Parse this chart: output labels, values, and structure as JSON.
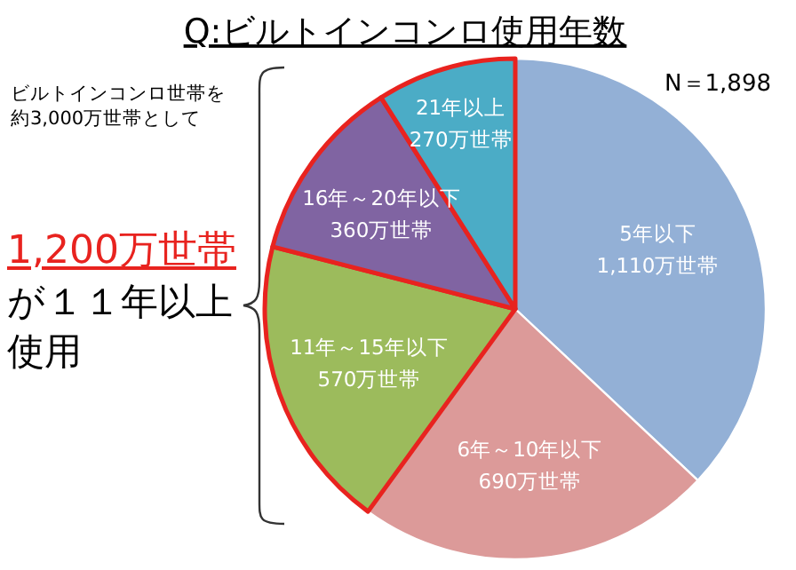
{
  "chart_data": {
    "type": "pie",
    "title": "Q:ビルトインコンロ使用年数",
    "categories": [
      "5年以下",
      "6年～10年以下",
      "11年～15年以下",
      "16年～20年以下",
      "21年以上"
    ],
    "values": [
      1110,
      690,
      570,
      360,
      270
    ],
    "value_labels": [
      "1,110万世帯",
      "690万世帯",
      "570万世帯",
      "360万世帯",
      "270万世帯"
    ],
    "colors": [
      "#93b0d6",
      "#dc9a99",
      "#9cbb5c",
      "#8064a2",
      "#4bacc6"
    ],
    "annotations": [
      "N＝1,898",
      "ビルトインコンロ世帯を約3,000万世帯として",
      "1,200万世帯",
      "が１１年以上使用"
    ]
  }
}
